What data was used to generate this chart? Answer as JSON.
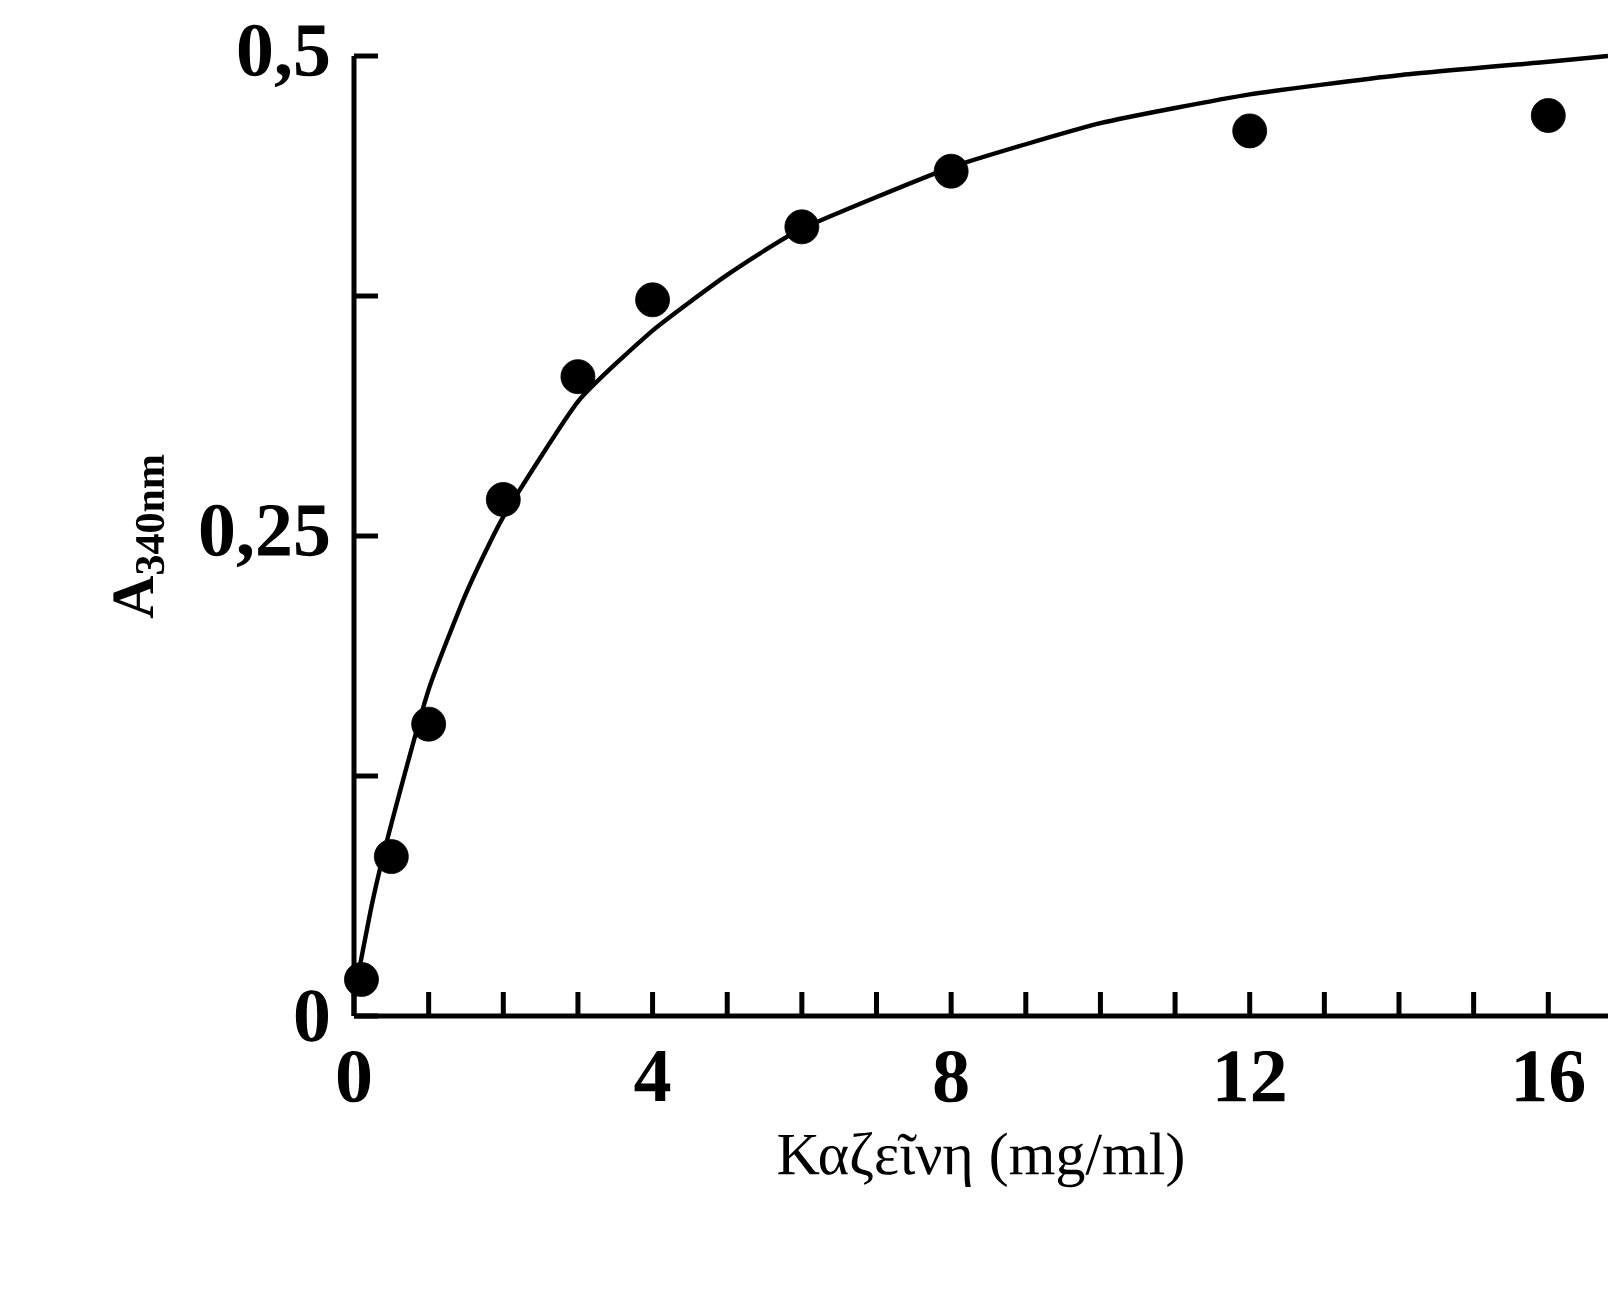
{
  "chart_data": {
    "type": "scatter",
    "xlabel": "Καζεῖνη (mg/ml)",
    "ylabel": "A$_{340nm}$",
    "series": [
      {
        "type": "scatter",
        "color": "#000000",
        "marker": "circle",
        "x": [
          0.1,
          0.5,
          1,
          2,
          3,
          4,
          6,
          8,
          12,
          16
        ],
        "values": [
          0.019,
          0.083,
          0.152,
          0.269,
          0.333,
          0.373,
          0.411,
          0.44,
          0.461,
          0.469
        ]
      },
      {
        "type": "line",
        "color": "#000000",
        "line_style": "solid",
        "x": [
          0,
          0.25,
          0.5,
          1,
          1.5,
          2,
          3,
          4,
          5,
          6,
          8,
          10,
          12,
          14,
          16,
          16.8
        ],
        "values": [
          0.01,
          0.06,
          0.1,
          0.17,
          0.22,
          0.26,
          0.32,
          0.357,
          0.386,
          0.41,
          0.442,
          0.465,
          0.48,
          0.49,
          0.497,
          0.5
        ]
      }
    ],
    "xlim": [
      0,
      16.8
    ],
    "xticks": [
      0,
      {
        "value": 1,
        "label": null
      },
      {
        "value": 2,
        "label": null
      },
      {
        "value": 3,
        "label": null
      },
      4,
      {
        "value": 5,
        "label": null
      },
      {
        "value": 6,
        "label": null
      },
      {
        "value": 7,
        "label": null
      },
      8,
      {
        "value": 9,
        "label": null
      },
      {
        "value": 10,
        "label": null
      },
      {
        "value": 11,
        "label": null
      },
      12,
      {
        "value": 13,
        "label": null
      },
      {
        "value": 14,
        "label": null
      },
      {
        "value": 15,
        "label": null
      },
      16
    ],
    "ylim": [
      0,
      0.5
    ],
    "yticks": [
      {
        "value": 0,
        "label": "0"
      },
      {
        "value": 0.125,
        "label": null
      },
      {
        "value": 0.25,
        "label": "0,25"
      },
      {
        "value": 0.375,
        "label": null
      },
      {
        "value": 0.5,
        "label": "0,5"
      }
    ],
    "grid": false
  }
}
